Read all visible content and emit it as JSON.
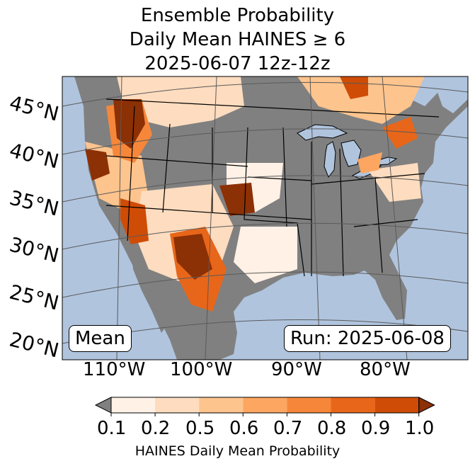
{
  "title": {
    "line1": "Ensemble Probability",
    "line2": "Daily Mean HAINES ≥ 6",
    "line3": "2025-06-07 12z-12z"
  },
  "lat_labels": [
    "45°N",
    "40°N",
    "35°N",
    "30°N",
    "25°N",
    "20°N"
  ],
  "lon_labels": [
    "110°W",
    "100°W",
    "90°W",
    "80°W"
  ],
  "stat_box": "Mean",
  "run_box": "Run: 2025-06-08",
  "colorbar": {
    "ticks": [
      "0.1",
      "0.2",
      "0.5",
      "0.6",
      "0.7",
      "0.8",
      "0.9",
      "1.0"
    ],
    "label": "HAINES Daily Mean Probability",
    "under_color": "#808080",
    "colors": [
      "#fff1e6",
      "#fddcbf",
      "#fdc48e",
      "#fda661",
      "#f6873a",
      "#e8661a",
      "#cf4c06"
    ],
    "over_color": "#8c3005"
  },
  "colors": {
    "ocean": "#b0c4de",
    "land": "#808080",
    "lakes": "#b0c4de",
    "borders": "#000000",
    "gridlines": "#5a5a5a"
  }
}
